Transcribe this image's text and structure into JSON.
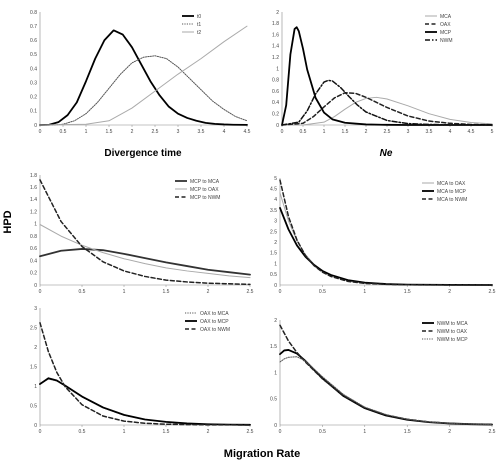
{
  "figure": {
    "shared_y_label": "HPD",
    "shared_x_label": "Migration Rate"
  },
  "chart_data": [
    {
      "type": "line",
      "xlabel": "Divergence time",
      "xlim": [
        0,
        4.5
      ],
      "ylim": [
        0,
        0.8
      ],
      "xticks": [
        0,
        0.5,
        1,
        1.5,
        2,
        2.5,
        3,
        3.5,
        4,
        4.5
      ],
      "xtick_labels": [
        "0",
        "0.5",
        "1",
        "1.5",
        "2",
        "2.5",
        "3",
        "3.5",
        "4",
        "4.5"
      ],
      "yticks": [
        0,
        0.1,
        0.2,
        0.3,
        0.4,
        0.5,
        0.6,
        0.7,
        0.8
      ],
      "ytick_labels": [
        "0",
        "0.1",
        "0.2",
        "0.3",
        "0.4",
        "0.5",
        "0.6",
        "0.7",
        "0.8"
      ],
      "legend_position": "top-right",
      "series": [
        {
          "name": "t0",
          "style": "solid-bold",
          "color": "#000000",
          "x": [
            0,
            0.2,
            0.4,
            0.6,
            0.8,
            1.0,
            1.2,
            1.4,
            1.6,
            1.8,
            2.0,
            2.2,
            2.4,
            2.6,
            2.8,
            3.0,
            3.2,
            3.4,
            3.6,
            3.8,
            4.0,
            4.2,
            4.5
          ],
          "y": [
            0,
            0.002,
            0.02,
            0.07,
            0.16,
            0.31,
            0.47,
            0.6,
            0.67,
            0.64,
            0.55,
            0.43,
            0.31,
            0.21,
            0.13,
            0.08,
            0.05,
            0.03,
            0.015,
            0.008,
            0.004,
            0.002,
            0.001
          ]
        },
        {
          "name": "t1",
          "style": "dotted",
          "color": "#555555",
          "x": [
            0,
            0.25,
            0.5,
            0.75,
            1.0,
            1.25,
            1.5,
            1.75,
            2.0,
            2.25,
            2.5,
            2.75,
            3.0,
            3.25,
            3.5,
            3.75,
            4.0,
            4.25,
            4.5
          ],
          "y": [
            0,
            0.0,
            0.005,
            0.03,
            0.08,
            0.16,
            0.26,
            0.36,
            0.44,
            0.48,
            0.49,
            0.47,
            0.41,
            0.33,
            0.25,
            0.17,
            0.11,
            0.06,
            0.03
          ]
        },
        {
          "name": "t2",
          "style": "solid",
          "color": "#aaaaaa",
          "x": [
            0,
            1.0,
            1.5,
            2.0,
            2.5,
            3.0,
            3.5,
            4.0,
            4.5
          ],
          "y": [
            0,
            0.005,
            0.03,
            0.12,
            0.24,
            0.36,
            0.47,
            0.59,
            0.7
          ]
        }
      ]
    },
    {
      "type": "line",
      "xlabel": "Ne",
      "xlim": [
        0,
        5
      ],
      "ylim": [
        0,
        2
      ],
      "xticks": [
        0,
        0.5,
        1,
        1.5,
        2,
        2.5,
        3,
        3.5,
        4,
        4.5,
        5
      ],
      "xtick_labels": [
        "0",
        "0.5",
        "1",
        "1.5",
        "2",
        "2.5",
        "3",
        "3.5",
        "4",
        "4.5",
        "5"
      ],
      "yticks": [
        0,
        0.2,
        0.4,
        0.6,
        0.8,
        1,
        1.2,
        1.4,
        1.6,
        1.8,
        2
      ],
      "ytick_labels": [
        "0",
        "0.2",
        "0.4",
        "0.6",
        "0.8",
        "1",
        "1.2",
        "1.4",
        "1.6",
        "1.8",
        "2"
      ],
      "legend_position": "top-right",
      "series": [
        {
          "name": "MCA",
          "style": "solid",
          "color": "#aaaaaa",
          "x": [
            0,
            0.5,
            1.0,
            1.25,
            1.5,
            1.75,
            2.0,
            2.25,
            2.5,
            3.0,
            3.5,
            4.0,
            4.5,
            5.0
          ],
          "y": [
            0,
            0.0,
            0.05,
            0.15,
            0.28,
            0.4,
            0.47,
            0.49,
            0.46,
            0.34,
            0.2,
            0.1,
            0.045,
            0.02
          ]
        },
        {
          "name": "OAX",
          "style": "dashed",
          "color": "#222222",
          "x": [
            0,
            0.5,
            0.75,
            1.0,
            1.25,
            1.5,
            1.75,
            2.0,
            2.5,
            3.0,
            3.5,
            4.0,
            4.5,
            5.0
          ],
          "y": [
            0,
            0.03,
            0.15,
            0.32,
            0.48,
            0.57,
            0.56,
            0.49,
            0.31,
            0.16,
            0.07,
            0.03,
            0.01,
            0.005
          ]
        },
        {
          "name": "MCP",
          "style": "solid-bold",
          "color": "#000000",
          "x": [
            0,
            0.1,
            0.2,
            0.3,
            0.35,
            0.4,
            0.5,
            0.6,
            0.8,
            1.0,
            1.2,
            1.5,
            2.0,
            2.5,
            3.0,
            5.0
          ],
          "y": [
            0,
            0.35,
            1.25,
            1.7,
            1.73,
            1.66,
            1.35,
            0.98,
            0.48,
            0.22,
            0.1,
            0.04,
            0.01,
            0.003,
            0.0,
            0.0
          ]
        },
        {
          "name": "NWM",
          "style": "dash-dot",
          "color": "#111111",
          "x": [
            0,
            0.4,
            0.6,
            0.8,
            1.0,
            1.1,
            1.2,
            1.4,
            1.6,
            1.8,
            2.0,
            2.5,
            3.0,
            3.5,
            4.0,
            5.0
          ],
          "y": [
            0,
            0.05,
            0.25,
            0.55,
            0.76,
            0.79,
            0.78,
            0.66,
            0.5,
            0.35,
            0.23,
            0.08,
            0.025,
            0.01,
            0.003,
            0.0
          ]
        }
      ]
    },
    {
      "type": "line",
      "xlim": [
        0,
        2.5
      ],
      "ylim": [
        0,
        1.8
      ],
      "xticks": [
        0,
        0.5,
        1,
        1.5,
        2,
        2.5
      ],
      "xtick_labels": [
        "0",
        "0.5",
        "1",
        "1.5",
        "2",
        "2.5"
      ],
      "yticks": [
        0,
        0.2,
        0.4,
        0.6,
        0.8,
        1,
        1.2,
        1.4,
        1.6,
        1.8
      ],
      "ytick_labels": [
        "0",
        "0.2",
        "0.4",
        "0.6",
        "0.8",
        "1",
        "1.2",
        "1.4",
        "1.6",
        "1.8"
      ],
      "legend_position": "top-right",
      "series": [
        {
          "name": "MCP to MCA",
          "style": "solid-bold",
          "color": "#333333",
          "x": [
            0,
            0.25,
            0.5,
            0.75,
            1.0,
            1.25,
            1.5,
            1.75,
            2.0,
            2.25,
            2.5
          ],
          "y": [
            0.47,
            0.56,
            0.59,
            0.57,
            0.51,
            0.44,
            0.37,
            0.31,
            0.25,
            0.21,
            0.17
          ]
        },
        {
          "name": "MCP to OAX",
          "style": "solid",
          "color": "#aaaaaa",
          "x": [
            0,
            0.25,
            0.5,
            0.75,
            1.0,
            1.25,
            1.5,
            1.75,
            2.0,
            2.25,
            2.5
          ],
          "y": [
            0.99,
            0.8,
            0.65,
            0.53,
            0.43,
            0.35,
            0.28,
            0.23,
            0.19,
            0.15,
            0.12
          ]
        },
        {
          "name": "MCP to NWM",
          "style": "dashed",
          "color": "#222222",
          "x": [
            0,
            0.25,
            0.5,
            0.75,
            1.0,
            1.25,
            1.5,
            1.75,
            2.0,
            2.25,
            2.5
          ],
          "y": [
            1.72,
            1.04,
            0.63,
            0.38,
            0.23,
            0.14,
            0.08,
            0.05,
            0.03,
            0.02,
            0.01
          ]
        }
      ]
    },
    {
      "type": "line",
      "xlim": [
        0,
        2.5
      ],
      "ylim": [
        0,
        5
      ],
      "xticks": [
        0,
        0.5,
        1,
        1.5,
        2,
        2.5
      ],
      "xtick_labels": [
        "0",
        "0.5",
        "1",
        "1.5",
        "2",
        "2.5"
      ],
      "yticks": [
        0,
        0.5,
        1,
        1.5,
        2,
        2.5,
        3,
        3.5,
        4,
        4.5,
        5
      ],
      "ytick_labels": [
        "0",
        "0.5",
        "1",
        "1.5",
        "2",
        "2.5",
        "3",
        "3.5",
        "4",
        "4.5",
        "5"
      ],
      "legend_position": "top-right",
      "series": [
        {
          "name": "MCA to OAX",
          "style": "solid",
          "color": "#aaaaaa",
          "x": [
            0,
            0.1,
            0.2,
            0.3,
            0.4,
            0.5,
            0.6,
            0.8,
            1.0,
            1.25,
            1.5,
            2.0,
            2.5
          ],
          "y": [
            4.3,
            3.0,
            2.05,
            1.42,
            0.98,
            0.67,
            0.46,
            0.22,
            0.1,
            0.04,
            0.015,
            0.003,
            0.0
          ]
        },
        {
          "name": "MCA to MCP",
          "style": "solid-bold",
          "color": "#000000",
          "x": [
            0,
            0.1,
            0.2,
            0.3,
            0.4,
            0.5,
            0.6,
            0.8,
            1.0,
            1.25,
            1.5,
            2.0,
            2.5
          ],
          "y": [
            3.6,
            2.6,
            1.85,
            1.32,
            0.94,
            0.66,
            0.47,
            0.23,
            0.11,
            0.045,
            0.018,
            0.004,
            0.0
          ]
        },
        {
          "name": "MCA to NWM",
          "style": "dashed",
          "color": "#222222",
          "x": [
            0,
            0.1,
            0.2,
            0.3,
            0.4,
            0.5,
            0.6,
            0.8,
            1.0,
            1.25,
            1.5,
            2.0,
            2.5
          ],
          "y": [
            4.9,
            3.2,
            2.1,
            1.38,
            0.91,
            0.6,
            0.4,
            0.17,
            0.075,
            0.03,
            0.01,
            0.002,
            0.0
          ]
        }
      ]
    },
    {
      "type": "line",
      "xlim": [
        0,
        2.5
      ],
      "ylim": [
        0,
        3
      ],
      "xticks": [
        0,
        0.5,
        1,
        1.5,
        2,
        2.5
      ],
      "xtick_labels": [
        "0",
        "0.5",
        "1",
        "1.5",
        "2",
        "2.5"
      ],
      "yticks": [
        0,
        0.5,
        1,
        1.5,
        2,
        2.5,
        3
      ],
      "ytick_labels": [
        "0",
        "0.5",
        "1",
        "1.5",
        "2",
        "2.5",
        "3"
      ],
      "legend_position": "top-right",
      "series": [
        {
          "name": "OAX to MCA",
          "style": "dotted",
          "color": "#555555",
          "x": [
            0,
            0.1,
            0.2,
            0.3,
            0.5,
            0.75,
            1.0,
            1.25,
            1.5,
            1.75,
            2.0,
            2.25,
            2.5
          ],
          "y": [
            1.05,
            1.18,
            1.13,
            1.0,
            0.72,
            0.44,
            0.25,
            0.14,
            0.08,
            0.04,
            0.02,
            0.01,
            0.005
          ]
        },
        {
          "name": "OAX to MCP",
          "style": "solid-bold",
          "color": "#000000",
          "x": [
            0,
            0.1,
            0.2,
            0.3,
            0.5,
            0.75,
            1.0,
            1.25,
            1.5,
            1.75,
            2.0,
            2.25,
            2.5
          ],
          "y": [
            1.05,
            1.2,
            1.14,
            1.01,
            0.73,
            0.45,
            0.26,
            0.14,
            0.08,
            0.04,
            0.02,
            0.01,
            0.005
          ]
        },
        {
          "name": "OAX to NWM",
          "style": "dashed",
          "color": "#222222",
          "x": [
            0,
            0.1,
            0.2,
            0.3,
            0.5,
            0.75,
            1.0,
            1.25,
            1.5,
            1.75,
            2.0,
            2.25,
            2.5
          ],
          "y": [
            2.62,
            1.88,
            1.35,
            0.98,
            0.52,
            0.23,
            0.1,
            0.045,
            0.02,
            0.01,
            0.004,
            0.002,
            0.001
          ]
        }
      ]
    },
    {
      "type": "line",
      "xlim": [
        0,
        2.5
      ],
      "ylim": [
        0,
        2
      ],
      "xticks": [
        0,
        0.5,
        1,
        1.5,
        2,
        2.5
      ],
      "xtick_labels": [
        "0",
        "0.5",
        "1",
        "1.5",
        "2",
        "2.5"
      ],
      "yticks": [
        0,
        0.5,
        1,
        1.5,
        2
      ],
      "ytick_labels": [
        "0",
        "0.5",
        "1",
        "1.5",
        "2"
      ],
      "legend_position": "top-right",
      "series": [
        {
          "name": "NWM to MCA",
          "style": "solid-bold",
          "color": "#000000",
          "x": [
            0,
            0.05,
            0.1,
            0.2,
            0.3,
            0.5,
            0.75,
            1.0,
            1.25,
            1.5,
            1.75,
            2.0,
            2.25,
            2.5
          ],
          "y": [
            1.35,
            1.42,
            1.43,
            1.36,
            1.22,
            0.89,
            0.55,
            0.32,
            0.18,
            0.1,
            0.055,
            0.03,
            0.015,
            0.008
          ]
        },
        {
          "name": "NWM to OAX",
          "style": "dashed",
          "color": "#222222",
          "x": [
            0,
            0.05,
            0.1,
            0.2,
            0.3,
            0.5,
            0.75,
            1.0,
            1.25,
            1.5,
            1.75,
            2.0,
            2.25,
            2.5
          ],
          "y": [
            1.9,
            1.75,
            1.6,
            1.38,
            1.2,
            0.88,
            0.56,
            0.33,
            0.19,
            0.11,
            0.06,
            0.03,
            0.016,
            0.008
          ]
        },
        {
          "name": "NWM to MCP",
          "style": "dotted",
          "color": "#555555",
          "x": [
            0,
            0.05,
            0.1,
            0.2,
            0.3,
            0.5,
            0.75,
            1.0,
            1.25,
            1.5,
            1.75,
            2.0,
            2.25,
            2.5
          ],
          "y": [
            1.2,
            1.26,
            1.29,
            1.3,
            1.22,
            0.92,
            0.58,
            0.34,
            0.2,
            0.11,
            0.06,
            0.032,
            0.017,
            0.009
          ]
        }
      ]
    }
  ]
}
